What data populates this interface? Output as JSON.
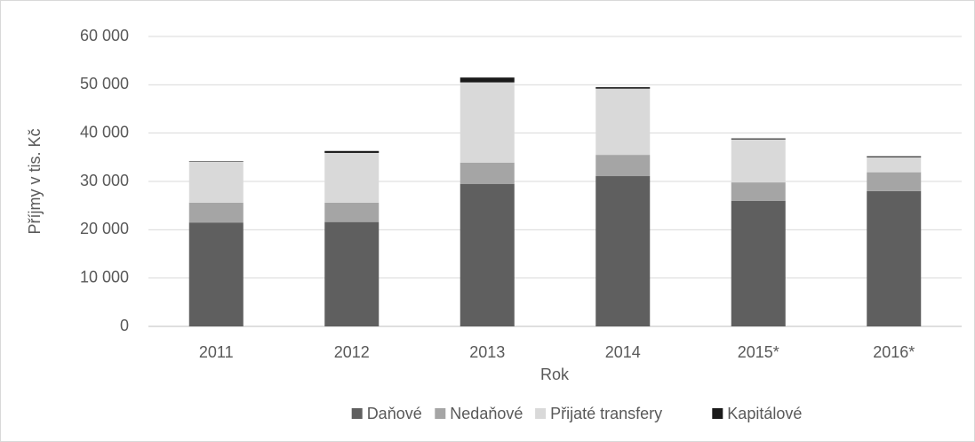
{
  "chart_data": {
    "type": "stacked_bar",
    "y_label": "Příjmy v tis. Kč",
    "x_label": "Rok",
    "categories": [
      "2011",
      "2012",
      "2013",
      "2014",
      "2015*",
      "2016*"
    ],
    "series": [
      {
        "name": "Daňové",
        "color": "#5f5f5f",
        "values": [
          21500,
          21600,
          29500,
          31100,
          26000,
          28000
        ]
      },
      {
        "name": "Nedaňové",
        "color": "#a5a5a5",
        "values": [
          4100,
          4000,
          4400,
          4400,
          3800,
          3900
        ]
      },
      {
        "name": "Přijaté transfery",
        "color": "#d9d9d9",
        "values": [
          8500,
          10300,
          16600,
          13700,
          8900,
          3100
        ]
      },
      {
        "name": "Kapitálové",
        "color": "#1a1a1a",
        "values": [
          100,
          400,
          1000,
          300,
          200,
          200
        ]
      }
    ],
    "ylim": [
      0,
      60000
    ],
    "yticks": [
      0,
      {
        "value": 10000,
        "label": "10 000"
      },
      {
        "value": 20000,
        "label": "20 000"
      },
      {
        "value": 30000,
        "label": "30 000"
      },
      {
        "value": 40000,
        "label": "40 000"
      },
      {
        "value": 50000,
        "label": "50 000"
      },
      {
        "value": 60000,
        "label": "60 000"
      }
    ],
    "grid": true,
    "legend": "bottom"
  }
}
